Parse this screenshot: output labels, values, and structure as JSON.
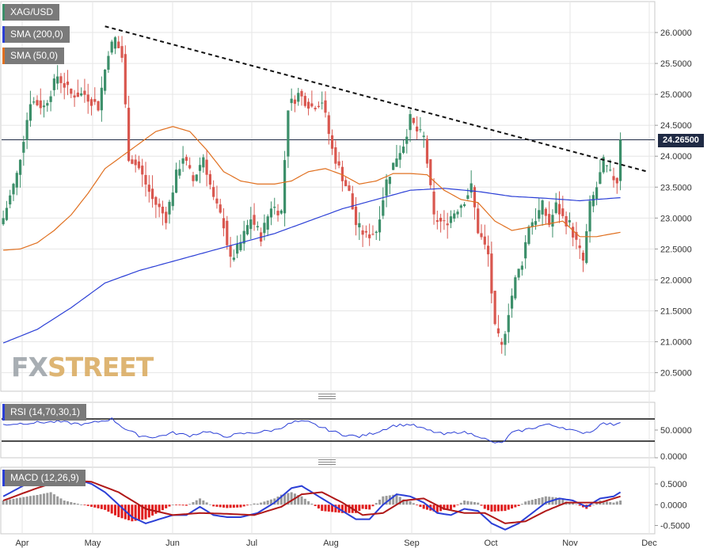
{
  "chart_data": [
    {
      "type": "candlestick",
      "symbol": "XAG/USD",
      "legend": [
        {
          "label": "XAG/USD",
          "color": "#3c8f6a"
        },
        {
          "label": "SMA (200,0)",
          "color": "#2b3fd6"
        },
        {
          "label": "SMA (50,0)",
          "color": "#e07020"
        }
      ],
      "x_ticks": [
        "Apr",
        "May",
        "Jun",
        "Jul",
        "Aug",
        "Sep",
        "Oct",
        "Nov",
        "Dec"
      ],
      "y_ticks": [
        "20.5000",
        "21.0000",
        "21.5000",
        "22.0000",
        "22.5000",
        "23.0000",
        "23.5000",
        "24.0000",
        "24.5000",
        "25.0000",
        "25.5000",
        "26.0000"
      ],
      "ylim": [
        20.2,
        26.5
      ],
      "last_price": "24.26500",
      "last_price_value": 24.265,
      "close_keypoints": [
        [
          0,
          23.0
        ],
        [
          4,
          23.7
        ],
        [
          8,
          24.9
        ],
        [
          12,
          24.8
        ],
        [
          16,
          25.3
        ],
        [
          20,
          25.0
        ],
        [
          24,
          25.0
        ],
        [
          28,
          24.8
        ],
        [
          31,
          25.7
        ],
        [
          33,
          25.9
        ],
        [
          35,
          25.6
        ],
        [
          37,
          24.0
        ],
        [
          40,
          23.8
        ],
        [
          44,
          23.3
        ],
        [
          48,
          23.0
        ],
        [
          51,
          23.7
        ],
        [
          53,
          24.0
        ],
        [
          56,
          23.6
        ],
        [
          59,
          24.0
        ],
        [
          62,
          23.3
        ],
        [
          65,
          22.9
        ],
        [
          67,
          22.3
        ],
        [
          70,
          22.6
        ],
        [
          73,
          23.0
        ],
        [
          76,
          22.7
        ],
        [
          79,
          23.2
        ],
        [
          82,
          23.1
        ],
        [
          84,
          24.8
        ],
        [
          87,
          25.0
        ],
        [
          89,
          24.9
        ],
        [
          91,
          24.8
        ],
        [
          94,
          24.9
        ],
        [
          97,
          24.1
        ],
        [
          99,
          23.8
        ],
        [
          102,
          23.4
        ],
        [
          104,
          22.9
        ],
        [
          107,
          22.7
        ],
        [
          110,
          22.8
        ],
        [
          113,
          23.6
        ],
        [
          116,
          24.0
        ],
        [
          118,
          24.2
        ],
        [
          120,
          24.6
        ],
        [
          122,
          24.4
        ],
        [
          124,
          24.3
        ],
        [
          125,
          23.9
        ],
        [
          127,
          23.0
        ],
        [
          130,
          22.9
        ],
        [
          133,
          23.1
        ],
        [
          136,
          23.3
        ],
        [
          138,
          23.5
        ],
        [
          140,
          22.8
        ],
        [
          143,
          22.4
        ],
        [
          145,
          21.2
        ],
        [
          147,
          20.9
        ],
        [
          149,
          21.5
        ],
        [
          151,
          22.0
        ],
        [
          153,
          22.3
        ],
        [
          155,
          22.9
        ],
        [
          157,
          23.0
        ],
        [
          159,
          23.2
        ],
        [
          161,
          22.9
        ],
        [
          163,
          23.2
        ],
        [
          165,
          23.0
        ],
        [
          167,
          22.9
        ],
        [
          169,
          22.6
        ],
        [
          171,
          22.3
        ],
        [
          173,
          23.2
        ],
        [
          175,
          23.5
        ],
        [
          177,
          23.9
        ],
        [
          179,
          23.7
        ],
        [
          181,
          23.6
        ],
        [
          182,
          24.265
        ]
      ],
      "sma200_keypoints": [
        [
          0,
          20.98
        ],
        [
          10,
          21.2
        ],
        [
          20,
          21.55
        ],
        [
          30,
          21.95
        ],
        [
          40,
          22.15
        ],
        [
          50,
          22.3
        ],
        [
          60,
          22.45
        ],
        [
          70,
          22.6
        ],
        [
          80,
          22.75
        ],
        [
          90,
          22.95
        ],
        [
          100,
          23.15
        ],
        [
          110,
          23.3
        ],
        [
          120,
          23.45
        ],
        [
          130,
          23.48
        ],
        [
          140,
          23.43
        ],
        [
          150,
          23.35
        ],
        [
          160,
          23.32
        ],
        [
          170,
          23.28
        ],
        [
          182,
          23.33
        ]
      ],
      "sma50_keypoints": [
        [
          0,
          22.48
        ],
        [
          5,
          22.5
        ],
        [
          10,
          22.6
        ],
        [
          15,
          22.8
        ],
        [
          20,
          23.05
        ],
        [
          25,
          23.4
        ],
        [
          30,
          23.8
        ],
        [
          35,
          24.0
        ],
        [
          40,
          24.2
        ],
        [
          45,
          24.4
        ],
        [
          50,
          24.48
        ],
        [
          55,
          24.4
        ],
        [
          60,
          24.1
        ],
        [
          65,
          23.75
        ],
        [
          70,
          23.6
        ],
        [
          75,
          23.55
        ],
        [
          80,
          23.55
        ],
        [
          85,
          23.6
        ],
        [
          90,
          23.75
        ],
        [
          95,
          23.8
        ],
        [
          100,
          23.7
        ],
        [
          105,
          23.55
        ],
        [
          110,
          23.6
        ],
        [
          115,
          23.72
        ],
        [
          120,
          23.72
        ],
        [
          125,
          23.7
        ],
        [
          130,
          23.45
        ],
        [
          135,
          23.3
        ],
        [
          140,
          23.25
        ],
        [
          145,
          22.95
        ],
        [
          150,
          22.8
        ],
        [
          155,
          22.85
        ],
        [
          160,
          22.9
        ],
        [
          165,
          22.95
        ],
        [
          170,
          22.7
        ],
        [
          175,
          22.7
        ],
        [
          182,
          22.77
        ]
      ],
      "trendline": {
        "start_bar": 30,
        "start_value": 26.1,
        "end_bar": 190,
        "end_value": 23.75
      }
    },
    {
      "type": "line",
      "label": "RSI (14,70,30,1)",
      "color": "#2b3fd6",
      "y_ticks": [
        "0.0000",
        "50.0000"
      ],
      "ylim": [
        0,
        100
      ],
      "levels": [
        70,
        30
      ],
      "keypoints": [
        [
          0,
          60
        ],
        [
          8,
          63
        ],
        [
          16,
          65
        ],
        [
          24,
          60
        ],
        [
          32,
          70
        ],
        [
          36,
          52
        ],
        [
          40,
          40
        ],
        [
          45,
          37
        ],
        [
          50,
          45
        ],
        [
          55,
          40
        ],
        [
          60,
          48
        ],
        [
          65,
          38
        ],
        [
          70,
          43
        ],
        [
          75,
          46
        ],
        [
          80,
          50
        ],
        [
          86,
          65
        ],
        [
          90,
          64
        ],
        [
          95,
          52
        ],
        [
          100,
          42
        ],
        [
          105,
          38
        ],
        [
          110,
          46
        ],
        [
          115,
          58
        ],
        [
          120,
          60
        ],
        [
          125,
          50
        ],
        [
          130,
          42
        ],
        [
          135,
          47
        ],
        [
          140,
          40
        ],
        [
          144,
          28
        ],
        [
          147,
          26
        ],
        [
          150,
          45
        ],
        [
          155,
          52
        ],
        [
          160,
          60
        ],
        [
          165,
          55
        ],
        [
          170,
          45
        ],
        [
          174,
          48
        ],
        [
          176,
          62
        ],
        [
          180,
          60
        ],
        [
          182,
          65
        ]
      ]
    },
    {
      "type": "macd",
      "label": "MACD (12,26,9)",
      "y_ticks": [
        "-0.5000",
        "0.0000",
        "0.5000"
      ],
      "ylim": [
        -0.7,
        0.9
      ],
      "macd_color": "#2b3fd6",
      "signal_color": "#b01818",
      "macd_keypoints": [
        [
          0,
          0.2
        ],
        [
          8,
          0.55
        ],
        [
          14,
          0.8
        ],
        [
          20,
          0.65
        ],
        [
          26,
          0.5
        ],
        [
          30,
          0.3
        ],
        [
          34,
          0.0
        ],
        [
          38,
          -0.3
        ],
        [
          42,
          -0.45
        ],
        [
          46,
          -0.35
        ],
        [
          50,
          -0.25
        ],
        [
          54,
          -0.25
        ],
        [
          58,
          -0.05
        ],
        [
          62,
          -0.25
        ],
        [
          66,
          -0.3
        ],
        [
          70,
          -0.3
        ],
        [
          75,
          -0.2
        ],
        [
          80,
          0.05
        ],
        [
          85,
          0.4
        ],
        [
          88,
          0.45
        ],
        [
          92,
          0.25
        ],
        [
          96,
          0.05
        ],
        [
          100,
          -0.15
        ],
        [
          104,
          -0.35
        ],
        [
          108,
          -0.35
        ],
        [
          112,
          0.0
        ],
        [
          116,
          0.25
        ],
        [
          120,
          0.2
        ],
        [
          124,
          0.05
        ],
        [
          128,
          -0.2
        ],
        [
          132,
          -0.25
        ],
        [
          136,
          -0.1
        ],
        [
          140,
          -0.15
        ],
        [
          144,
          -0.45
        ],
        [
          148,
          -0.6
        ],
        [
          152,
          -0.45
        ],
        [
          156,
          -0.2
        ],
        [
          160,
          0.05
        ],
        [
          164,
          0.15
        ],
        [
          168,
          0.1
        ],
        [
          172,
          -0.05
        ],
        [
          176,
          0.15
        ],
        [
          180,
          0.2
        ],
        [
          182,
          0.3
        ]
      ],
      "signal_keypoints": [
        [
          0,
          0.1
        ],
        [
          10,
          0.4
        ],
        [
          18,
          0.6
        ],
        [
          26,
          0.55
        ],
        [
          34,
          0.3
        ],
        [
          42,
          -0.1
        ],
        [
          50,
          -0.25
        ],
        [
          58,
          -0.2
        ],
        [
          66,
          -0.22
        ],
        [
          74,
          -0.25
        ],
        [
          82,
          -0.05
        ],
        [
          88,
          0.25
        ],
        [
          94,
          0.3
        ],
        [
          100,
          0.05
        ],
        [
          106,
          -0.25
        ],
        [
          112,
          -0.2
        ],
        [
          118,
          0.1
        ],
        [
          124,
          0.15
        ],
        [
          130,
          -0.1
        ],
        [
          136,
          -0.2
        ],
        [
          142,
          -0.2
        ],
        [
          148,
          -0.45
        ],
        [
          154,
          -0.4
        ],
        [
          160,
          -0.15
        ],
        [
          166,
          0.05
        ],
        [
          172,
          0.05
        ],
        [
          176,
          0.05
        ],
        [
          182,
          0.2
        ]
      ]
    }
  ],
  "watermark": {
    "fx": "FX",
    "street": "STREET"
  }
}
